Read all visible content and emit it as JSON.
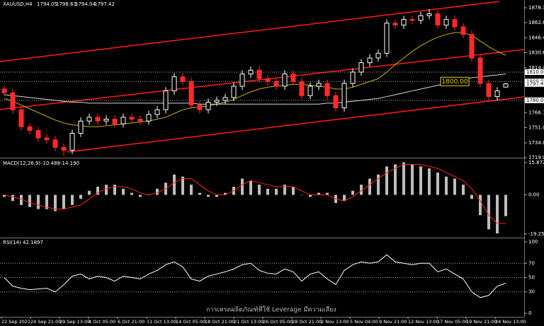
{
  "chart_data": {
    "type": "candlestick",
    "symbol": "XAUUSD,H4",
    "candles": {
      "open": [
        1792,
        1788,
        1770,
        1752,
        1748,
        1740,
        1738,
        1730,
        1727,
        1745,
        1758,
        1762,
        1758,
        1760,
        1755,
        1762,
        1760,
        1758,
        1765,
        1770,
        1790,
        1805,
        1800,
        1775,
        1770,
        1778,
        1780,
        1783,
        1795,
        1808,
        1812,
        1803,
        1800,
        1795,
        1808,
        1800,
        1785,
        1795,
        1798,
        1785,
        1772,
        1798,
        1810,
        1820,
        1825,
        1830,
        1862,
        1860,
        1866,
        1865,
        1870,
        1872,
        1860,
        1866,
        1858,
        1850,
        1825,
        1798,
        1784,
        1794.05
      ],
      "high": [
        1796,
        1792,
        1774,
        1756,
        1752,
        1744,
        1742,
        1734,
        1749,
        1762,
        1766,
        1766,
        1764,
        1764,
        1766,
        1766,
        1764,
        1769,
        1774,
        1794,
        1809,
        1809,
        1804,
        1779,
        1782,
        1784,
        1787,
        1799,
        1812,
        1816,
        1816,
        1807,
        1804,
        1812,
        1812,
        1804,
        1799,
        1802,
        1802,
        1789,
        1802,
        1814,
        1824,
        1829,
        1834,
        1866,
        1866,
        1870,
        1870,
        1874,
        1877,
        1876,
        1870,
        1870,
        1862,
        1854,
        1829,
        1802,
        1794,
        1798.63
      ],
      "low": [
        1784,
        1766,
        1748,
        1744,
        1736,
        1734,
        1726,
        1721,
        1723,
        1741,
        1754,
        1754,
        1754,
        1751,
        1751,
        1756,
        1754,
        1754,
        1761,
        1766,
        1786,
        1796,
        1771,
        1766,
        1766,
        1774,
        1776,
        1779,
        1791,
        1804,
        1799,
        1796,
        1791,
        1791,
        1796,
        1781,
        1781,
        1791,
        1781,
        1768,
        1768,
        1794,
        1806,
        1816,
        1821,
        1826,
        1856,
        1856,
        1861,
        1861,
        1866,
        1856,
        1856,
        1854,
        1846,
        1821,
        1794,
        1780,
        1780,
        1794.04
      ],
      "close": [
        1788,
        1770,
        1752,
        1748,
        1740,
        1738,
        1730,
        1727,
        1745,
        1758,
        1762,
        1758,
        1760,
        1755,
        1762,
        1760,
        1758,
        1765,
        1770,
        1790,
        1805,
        1800,
        1775,
        1770,
        1778,
        1780,
        1783,
        1795,
        1808,
        1812,
        1803,
        1800,
        1795,
        1808,
        1800,
        1785,
        1795,
        1798,
        1785,
        1772,
        1798,
        1810,
        1820,
        1825,
        1830,
        1862,
        1860,
        1866,
        1865,
        1870,
        1872,
        1860,
        1866,
        1858,
        1850,
        1825,
        1798,
        1784,
        1790,
        1797.42
      ],
      "up_color": "#ffffff",
      "down_color": "#ff2a2a"
    },
    "series": [
      {
        "color": "#c8b400",
        "values": [
          1782,
          1779,
          1775,
          1771,
          1767,
          1763,
          1759,
          1756,
          1754,
          1753,
          1752,
          1752,
          1753,
          1754,
          1755,
          1756,
          1757,
          1758,
          1760,
          1762,
          1766,
          1770,
          1772,
          1773,
          1774,
          1776,
          1778,
          1781,
          1785,
          1789,
          1792,
          1794,
          1795,
          1796,
          1797,
          1797,
          1796,
          1795,
          1794,
          1792,
          1792,
          1794,
          1797,
          1800,
          1803,
          1810,
          1818,
          1825,
          1832,
          1838,
          1843,
          1847,
          1850,
          1852,
          1852,
          1849,
          1843,
          1837,
          1832,
          1828
        ]
      },
      {
        "color": "#d8d8d8",
        "values": [
          1786,
          1785,
          1784,
          1783,
          1782,
          1781,
          1780,
          1779,
          1778,
          1778,
          1777,
          1777,
          1777,
          1777,
          1777,
          1777,
          1777,
          1777,
          1777,
          1777,
          1777,
          1777,
          1777,
          1776,
          1776,
          1776,
          1776,
          1776,
          1776,
          1776,
          1776,
          1776,
          1776,
          1776,
          1776,
          1776,
          1776,
          1776,
          1777,
          1777,
          1778,
          1779,
          1780,
          1781,
          1782,
          1784,
          1786,
          1788,
          1790,
          1792,
          1794,
          1796,
          1798,
          1800,
          1802,
          1804,
          1805,
          1806,
          1807,
          1808
        ]
      }
    ],
    "trendlines": [
      {
        "x": [
          -0.5,
          58.25
        ],
        "y": [
          1821.2,
          1885.1
        ]
      },
      {
        "x": [
          -0.5,
          61.2
        ],
        "y": [
          1770.2,
          1834.0
        ]
      },
      {
        "x": [
          7.4,
          61.2
        ],
        "y": [
          1725.1,
          1783.7
        ]
      }
    ],
    "trendline_color": "#ff1a1a",
    "levels": [
      {
        "value": 1810,
        "label": "1810.00"
      },
      {
        "value": 1800,
        "label": "1800.00"
      },
      {
        "value": 1780,
        "label": "1780.00"
      }
    ],
    "ylim": [
      1719.8,
      1886.6
    ],
    "yticks": [
      1878.35,
      {
        "value": 1862.6,
        "label": "1862.60"
      },
      {
        "value": 1846.4,
        "label": "1846.40"
      },
      1830.65,
      1814.45,
      {
        "value": 1766.7,
        "label": "1766.70"
      },
      {
        "value": 1751,
        "label": "1751.00"
      },
      {
        "value": 1734.8,
        "label": "1734.80"
      },
      1719.05
    ],
    "x_labels": [
      "22 Sep 2021",
      "24 Sep 21:00",
      "29 Sep 13:00",
      "4 Oct 05:00",
      "6 Oct 21:00",
      "11 Oct 13:00",
      "14 Oct 05:00",
      "18 Oct 21:00",
      "21 Oct 13:00",
      "26 Oct 05:00",
      "28 Oct 21:00",
      "2 Nov 13:00",
      "5 Nov 04:00",
      "9 Nov 21:00",
      "12 Nov 13:00",
      "17 Nov 05:00",
      "19 Nov 21:00",
      "24 Nov 13:00"
    ],
    "macd": {
      "title": "MACD(12,26,9)",
      "signal_readout": "-14.190",
      "hist": [
        -1,
        -3,
        -5,
        -6,
        -7,
        -7,
        -8,
        -7,
        -5,
        -2,
        2,
        4,
        5,
        5,
        3,
        1,
        -1,
        0,
        3,
        6,
        10,
        9,
        5,
        1,
        -1,
        -1,
        1,
        4,
        8,
        7,
        5,
        3,
        3,
        5,
        4,
        0,
        -1,
        1,
        1,
        -4,
        -3,
        2,
        5,
        8,
        10,
        14,
        15,
        16,
        15,
        14,
        13,
        11,
        9,
        8,
        5,
        -2,
        -10,
        -17,
        -19,
        -10.488
      ],
      "signal": [
        0,
        -1,
        -2,
        -4,
        -5,
        -6,
        -7,
        -7,
        -6,
        -5,
        -2,
        1,
        3,
        4,
        4,
        3,
        1,
        0,
        1,
        3,
        6,
        8,
        8,
        5,
        2,
        0,
        0,
        2,
        5,
        7,
        6,
        5,
        4,
        4,
        4,
        2,
        0,
        0,
        0,
        -2,
        -3,
        -1,
        2,
        5,
        8,
        11,
        13,
        15,
        15,
        15,
        14,
        13,
        11,
        9,
        7,
        3,
        -3,
        -10,
        -14,
        -14.19
      ],
      "hist_color": "#bdbdbd",
      "signal_color": "#ff2020",
      "ylim": [
        -20.7,
        17.6
      ],
      "yticks": [
        15.872,
        {
          "value": 0,
          "label": "0.00"
        },
        -19.251
      ]
    },
    "rsi": {
      "title": "RSI(14)",
      "color": "#ffffff",
      "values": [
        50,
        38,
        35,
        33,
        34,
        35,
        30,
        40,
        52,
        55,
        48,
        52,
        50,
        45,
        52,
        50,
        48,
        55,
        60,
        68,
        72,
        65,
        48,
        45,
        52,
        55,
        58,
        62,
        68,
        70,
        60,
        56,
        55,
        62,
        58,
        45,
        55,
        58,
        48,
        40,
        60,
        68,
        72,
        70,
        72,
        82,
        72,
        70,
        68,
        70,
        70,
        58,
        62,
        55,
        48,
        30,
        22,
        25,
        38,
        42.1897
      ],
      "ylim": [
        0,
        100
      ],
      "yticks": [
        0,
        30,
        50,
        70,
        100
      ],
      "guides": [
        30,
        50,
        70
      ]
    },
    "watermark": "การเทรดผลิตภัณฑ์ที่ใช้ Leverage มีความเสี่ยง"
  }
}
